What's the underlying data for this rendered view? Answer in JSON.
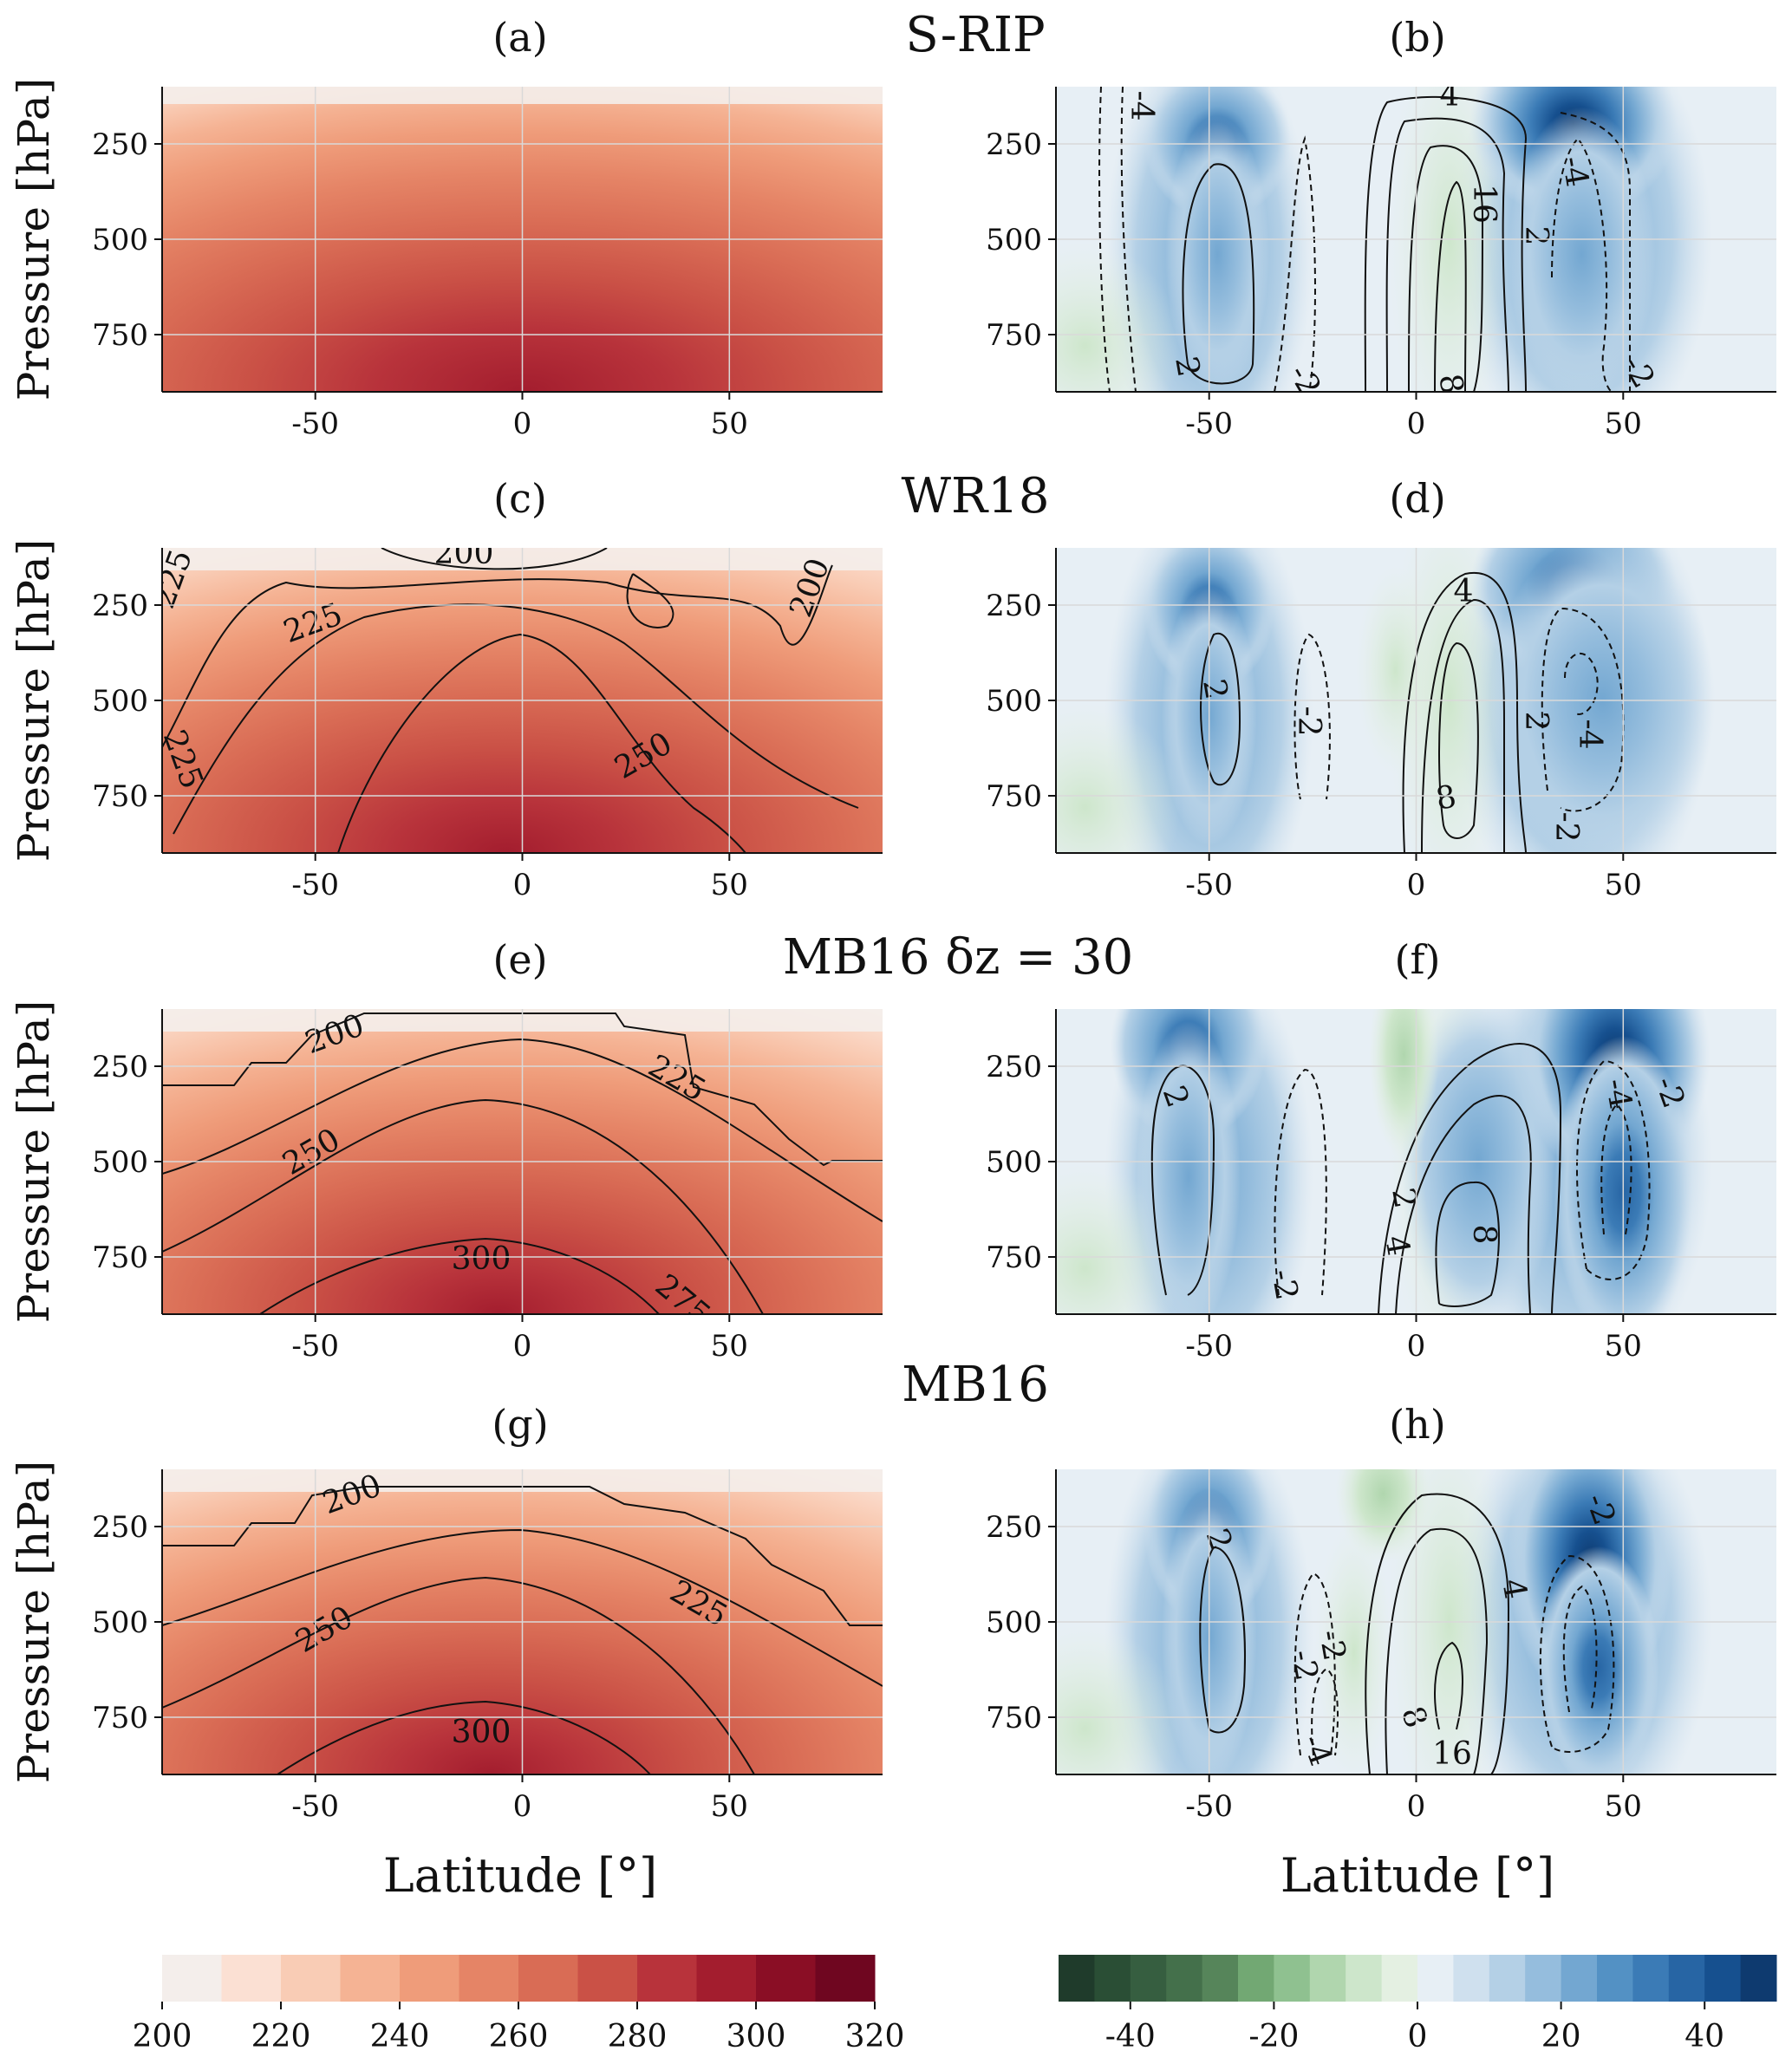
{
  "figure": {
    "rows": [
      {
        "title": "S-RIP",
        "left_label": "(a)",
        "right_label": "(b)"
      },
      {
        "title": "WR18",
        "left_label": "(c)",
        "right_label": "(d)"
      },
      {
        "title": "MB16 δz = 30",
        "left_label": "(e)",
        "right_label": "(f)"
      },
      {
        "title": "MB16",
        "left_label": "(g)",
        "right_label": "(h)"
      }
    ],
    "ylabel": "Pressure [hPa]",
    "xlabel": "Latitude [°]",
    "colors": {
      "temperature_scale": [
        "#f4eeeb",
        "#fbe0d3",
        "#f9ccb5",
        "#f5b394",
        "#ef9c7a",
        "#e58466",
        "#d96c55",
        "#ca5146",
        "#b8333b",
        "#a31d2e",
        "#8a0e25",
        "#6f0620"
      ],
      "wind_scale": [
        "#1f3b2b",
        "#2a4e35",
        "#365e40",
        "#44704b",
        "#56855a",
        "#72a873",
        "#8fc190",
        "#b0d6ae",
        "#cde6cb",
        "#e4f0e2",
        "#e7eff5",
        "#cfe0ee",
        "#b4d0e6",
        "#95bddd",
        "#73a7d1",
        "#5391c4",
        "#3b7bb6",
        "#2765a4",
        "#16508f",
        "#0e3a6f"
      ]
    }
  },
  "chart_data": [
    {
      "panel": "(a)",
      "type": "heatmap",
      "field": "temperature",
      "x_ticks": [
        -50,
        0,
        50
      ],
      "y_ticks": [
        250,
        500,
        750
      ],
      "xlim": [
        -87,
        87
      ],
      "ylim": [
        900,
        100
      ],
      "contours": []
    },
    {
      "panel": "(b)",
      "type": "heatmap",
      "field": "zonal wind",
      "x_ticks": [
        -50,
        0,
        50
      ],
      "y_ticks": [
        250,
        500,
        750
      ],
      "xlim": [
        -87,
        87
      ],
      "ylim": [
        900,
        100
      ],
      "contour_labels": [
        "-4",
        "2",
        "-2",
        "4",
        "16",
        "8",
        "2",
        "-4",
        "-2"
      ]
    },
    {
      "panel": "(c)",
      "type": "heatmap",
      "field": "temperature",
      "x_ticks": [
        -50,
        0,
        50
      ],
      "y_ticks": [
        250,
        500,
        750
      ],
      "xlim": [
        -87,
        87
      ],
      "ylim": [
        900,
        100
      ],
      "contour_labels": [
        "200",
        "225",
        "250",
        "225",
        "200",
        "225"
      ]
    },
    {
      "panel": "(d)",
      "type": "heatmap",
      "field": "zonal wind",
      "x_ticks": [
        -50,
        0,
        50
      ],
      "y_ticks": [
        250,
        500,
        750
      ],
      "xlim": [
        -87,
        87
      ],
      "ylim": [
        900,
        100
      ],
      "contour_labels": [
        "2",
        "-2",
        "4",
        "8",
        "2",
        "-4",
        "-2"
      ]
    },
    {
      "panel": "(e)",
      "type": "heatmap",
      "field": "temperature",
      "x_ticks": [
        -50,
        0,
        50
      ],
      "y_ticks": [
        250,
        500,
        750
      ],
      "xlim": [
        -87,
        87
      ],
      "ylim": [
        900,
        100
      ],
      "contour_labels": [
        "200",
        "225",
        "250",
        "300",
        "275"
      ]
    },
    {
      "panel": "(f)",
      "type": "heatmap",
      "field": "zonal wind",
      "x_ticks": [
        -50,
        0,
        50
      ],
      "y_ticks": [
        250,
        500,
        750
      ],
      "xlim": [
        -87,
        87
      ],
      "ylim": [
        900,
        100
      ],
      "contour_labels": [
        "2",
        "-2",
        "2",
        "4",
        "8",
        "-4",
        "-2"
      ]
    },
    {
      "panel": "(g)",
      "type": "heatmap",
      "field": "temperature",
      "x_ticks": [
        -50,
        0,
        50
      ],
      "y_ticks": [
        250,
        500,
        750
      ],
      "xlim": [
        -87,
        87
      ],
      "ylim": [
        900,
        100
      ],
      "contour_labels": [
        "200",
        "225",
        "250",
        "300"
      ]
    },
    {
      "panel": "(h)",
      "type": "heatmap",
      "field": "zonal wind",
      "x_ticks": [
        -50,
        0,
        50
      ],
      "y_ticks": [
        250,
        500,
        750
      ],
      "xlim": [
        -87,
        87
      ],
      "ylim": [
        900,
        100
      ],
      "contour_labels": [
        "2",
        "-2",
        "-2",
        "-4",
        "8",
        "16",
        "4",
        "-2"
      ]
    },
    {
      "type": "colorbar",
      "field": "temperature",
      "range": [
        200,
        320
      ],
      "tick_labels": [
        "200",
        "220",
        "240",
        "260",
        "280",
        "300",
        "320"
      ]
    },
    {
      "type": "colorbar",
      "field": "zonal wind",
      "range": [
        -50,
        50
      ],
      "tick_labels": [
        "-40",
        "-20",
        "0",
        "20",
        "40"
      ]
    }
  ]
}
